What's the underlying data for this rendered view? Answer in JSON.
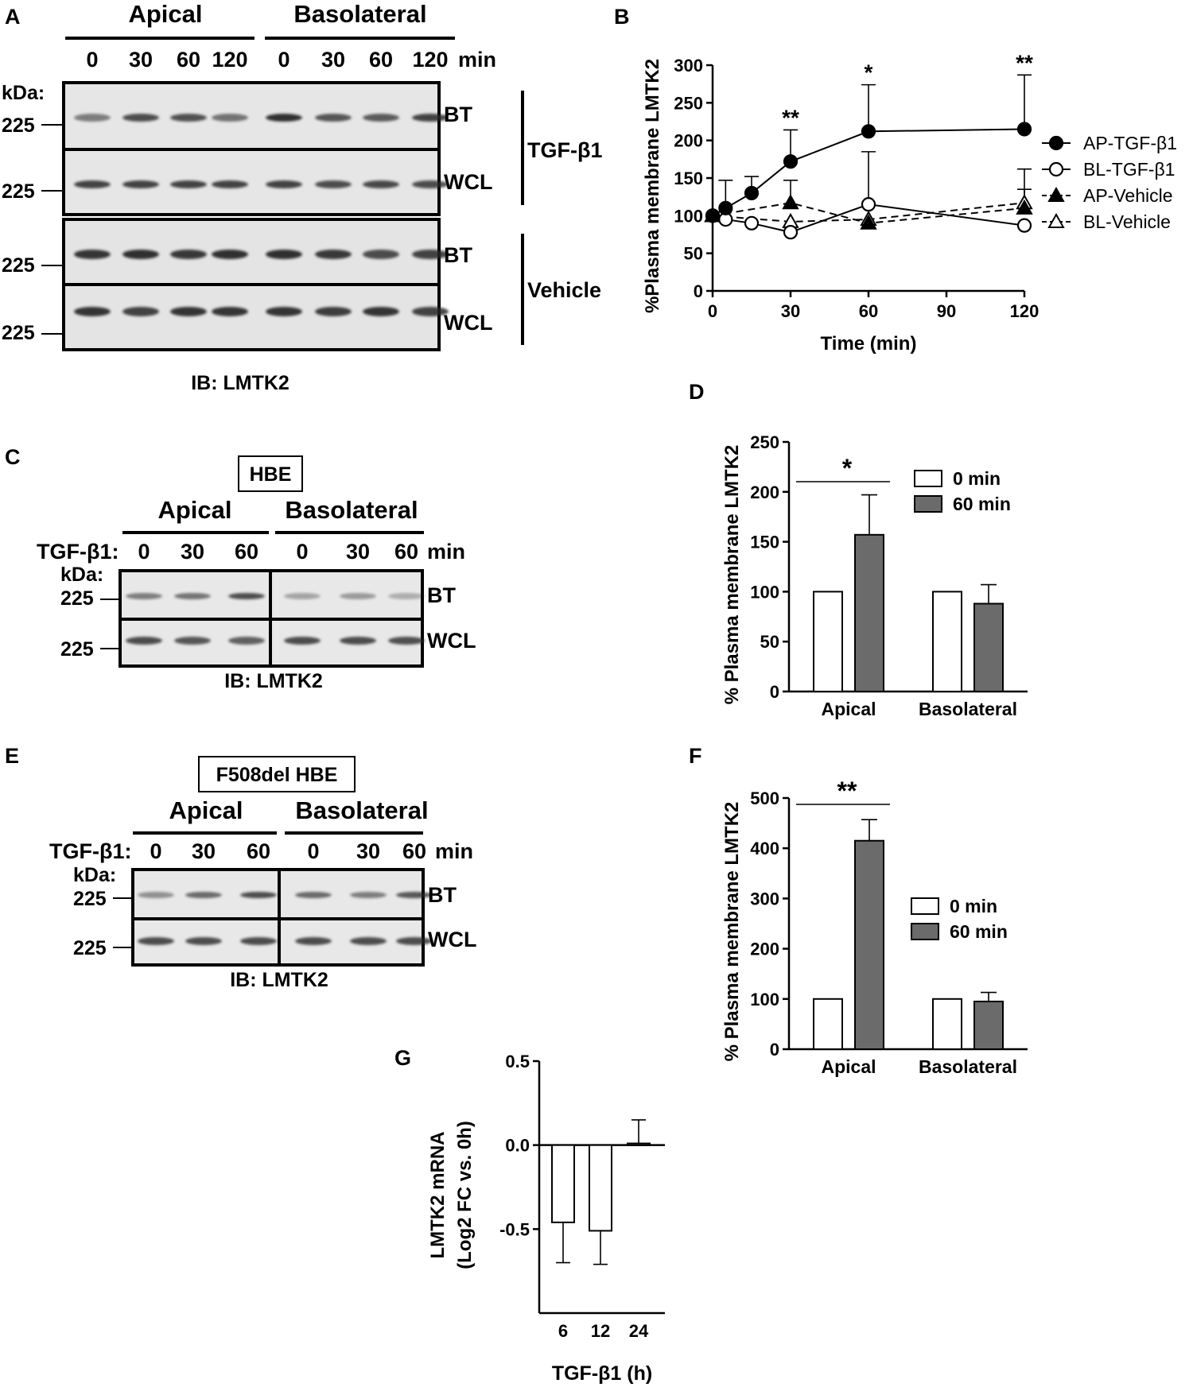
{
  "panels": {
    "A": {
      "letter": "A",
      "groups": [
        "Apical",
        "Basolateral"
      ],
      "times": [
        "0",
        "30",
        "60",
        "120",
        "0",
        "30",
        "60",
        "120"
      ],
      "time_unit": "min",
      "kda_label": "kDa:",
      "marker": "225",
      "row_labels": [
        "BT",
        "WCL",
        "BT",
        "WCL"
      ],
      "treatments": [
        "TGF-β1",
        "Vehicle"
      ],
      "ib_label": "IB: LMTK2"
    },
    "C": {
      "letter": "C",
      "cell_label": "HBE",
      "groups": [
        "Apical",
        "Basolateral"
      ],
      "treatment_label": "TGF-β1:",
      "times": [
        "0",
        "30",
        "60",
        "0",
        "30",
        "60"
      ],
      "time_unit": "min",
      "kda_label": "kDa:",
      "marker": "225",
      "row_labels": [
        "BT",
        "WCL"
      ],
      "ib_label": "IB: LMTK2"
    },
    "E": {
      "letter": "E",
      "cell_label": "F508del HBE",
      "groups": [
        "Apical",
        "Basolateral"
      ],
      "treatment_label": "TGF-β1:",
      "times": [
        "0",
        "30",
        "60",
        "0",
        "30",
        "60"
      ],
      "time_unit": "min",
      "kda_label": "kDa:",
      "marker": "225",
      "row_labels": [
        "BT",
        "WCL"
      ],
      "ib_label": "IB: LMTK2"
    }
  },
  "chart_data": [
    {
      "panel": "B",
      "type": "line",
      "xlabel": "Time (min)",
      "ylabel": "%Plasma membrane LMTK2",
      "xlim": [
        0,
        120
      ],
      "ylim": [
        0,
        300
      ],
      "xticks": [
        0,
        30,
        60,
        90,
        120
      ],
      "yticks": [
        0,
        50,
        100,
        150,
        200,
        250,
        300
      ],
      "legend_position": "right",
      "series": [
        {
          "name": "AP-TGF-β1",
          "marker": "filled-circle",
          "dash": "solid",
          "x": [
            0,
            5,
            15,
            30,
            60,
            120
          ],
          "y": [
            100,
            110,
            130,
            172,
            212,
            215
          ],
          "err": [
            0,
            37,
            22,
            42,
            62,
            72
          ]
        },
        {
          "name": "BL-TGF-β1",
          "marker": "open-circle",
          "dash": "solid",
          "x": [
            0,
            5,
            15,
            30,
            60,
            120
          ],
          "y": [
            100,
            95,
            90,
            78,
            115,
            87
          ],
          "err": [
            0,
            0,
            0,
            0,
            70,
            0
          ]
        },
        {
          "name": "AP-Vehicle",
          "marker": "filled-triangle",
          "dash": "dashed",
          "x": [
            0,
            30,
            60,
            120
          ],
          "y": [
            100,
            117,
            90,
            110
          ],
          "err": [
            0,
            30,
            0,
            25
          ]
        },
        {
          "name": "BL-Vehicle",
          "marker": "open-triangle",
          "dash": "dashed",
          "x": [
            0,
            30,
            60,
            120
          ],
          "y": [
            100,
            92,
            95,
            117
          ],
          "err": [
            0,
            0,
            0,
            45
          ]
        }
      ],
      "annotations": [
        {
          "x": 30,
          "text": "**"
        },
        {
          "x": 60,
          "text": "*"
        },
        {
          "x": 120,
          "text": "**"
        }
      ]
    },
    {
      "panel": "D",
      "type": "bar",
      "categories": [
        "Apical",
        "Basolateral"
      ],
      "ylabel": "% Plasma membrane LMTK2",
      "ylim": [
        0,
        250
      ],
      "yticks": [
        0,
        50,
        100,
        150,
        200,
        250
      ],
      "legend_position": "top-right",
      "series": [
        {
          "name": "0 min",
          "color": "#ffffff",
          "values": [
            100,
            100
          ],
          "err": [
            0,
            0
          ]
        },
        {
          "name": "60 min",
          "color": "#6b6b6b",
          "values": [
            157,
            88
          ],
          "err": [
            40,
            19
          ]
        }
      ],
      "significance": {
        "category": "Apical",
        "text": "*"
      }
    },
    {
      "panel": "F",
      "type": "bar",
      "categories": [
        "Apical",
        "Basolateral"
      ],
      "ylabel": "% Plasma membrane LMTK2",
      "ylim": [
        0,
        500
      ],
      "yticks": [
        0,
        100,
        200,
        300,
        400,
        500
      ],
      "legend_position": "right",
      "series": [
        {
          "name": "0 min",
          "color": "#ffffff",
          "values": [
            100,
            100
          ],
          "err": [
            0,
            0
          ]
        },
        {
          "name": "60 min",
          "color": "#6b6b6b",
          "values": [
            415,
            95
          ],
          "err": [
            42,
            18
          ]
        }
      ],
      "significance": {
        "category": "Apical",
        "text": "**"
      }
    },
    {
      "panel": "G",
      "type": "bar",
      "categories": [
        "6",
        "12",
        "24"
      ],
      "xlabel": "TGF-β1 (h)",
      "ylabel_line1": "LMTK2 mRNA",
      "ylabel_line2": "(Log2 FC vs. 0h)",
      "ylim": [
        -1.0,
        0.5
      ],
      "yticks": [
        0.5,
        0.0,
        -0.5
      ],
      "ytick_labels": [
        "0.5",
        "0.0",
        "-0.5"
      ],
      "series": [
        {
          "name": "",
          "color": "#ffffff",
          "values": [
            -0.46,
            -0.51,
            0.01
          ],
          "err": [
            0.24,
            0.2,
            0.14
          ]
        }
      ]
    }
  ]
}
